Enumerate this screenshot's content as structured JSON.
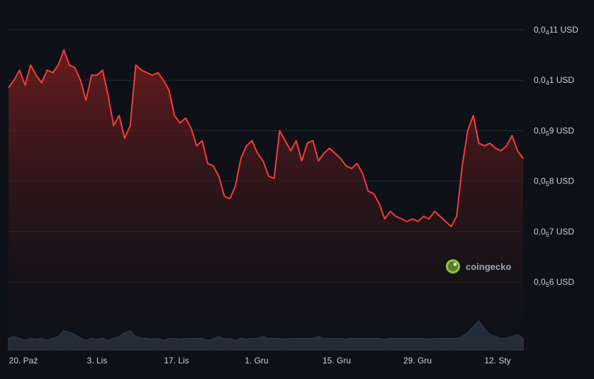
{
  "chart_data": {
    "type": "area",
    "x_ticks": [
      "20. Paź",
      "3. Lis",
      "17. Lis",
      "1. Gru",
      "15. Gru",
      "29. Gru",
      "12. Sty"
    ],
    "y_ticks": [
      {
        "value": 1.1,
        "label_prefix": "0,0",
        "label_sub": "4",
        "label_suffix": "11 USD"
      },
      {
        "value": 1.0,
        "label_prefix": "0,0",
        "label_sub": "4",
        "label_suffix": "1 USD"
      },
      {
        "value": 0.9,
        "label_prefix": "0,0",
        "label_sub": "5",
        "label_suffix": "9 USD"
      },
      {
        "value": 0.8,
        "label_prefix": "0,0",
        "label_sub": "5",
        "label_suffix": "8 USD"
      },
      {
        "value": 0.7,
        "label_prefix": "0,0",
        "label_sub": "5",
        "label_suffix": "7 USD"
      },
      {
        "value": 0.6,
        "label_prefix": "0,0",
        "label_sub": "5",
        "label_suffix": "6 USD"
      }
    ],
    "ylim": [
      0.6,
      1.1
    ],
    "series": [
      {
        "color": "#f23c3c",
        "price_values": [
          0.985,
          1.0,
          1.02,
          0.99,
          1.03,
          1.01,
          0.995,
          1.02,
          1.015,
          1.03,
          1.06,
          1.03,
          1.025,
          1.0,
          0.96,
          1.01,
          1.01,
          1.02,
          0.97,
          0.91,
          0.93,
          0.885,
          0.91,
          1.03,
          1.02,
          1.015,
          1.01,
          1.015,
          1.0,
          0.98,
          0.93,
          0.915,
          0.925,
          0.905,
          0.87,
          0.88,
          0.835,
          0.83,
          0.81,
          0.77,
          0.765,
          0.79,
          0.845,
          0.87,
          0.88,
          0.855,
          0.84,
          0.81,
          0.805,
          0.9,
          0.88,
          0.86,
          0.88,
          0.84,
          0.875,
          0.88,
          0.84,
          0.855,
          0.865,
          0.855,
          0.845,
          0.83,
          0.825,
          0.835,
          0.815,
          0.78,
          0.775,
          0.755,
          0.725,
          0.74,
          0.73,
          0.725,
          0.72,
          0.725,
          0.72,
          0.73,
          0.725,
          0.74,
          0.73,
          0.72,
          0.71,
          0.73,
          0.83,
          0.9,
          0.93,
          0.875,
          0.87,
          0.875,
          0.865,
          0.86,
          0.87,
          0.89,
          0.86,
          0.845
        ]
      }
    ],
    "volume": {
      "color": "#2a3342",
      "values": [
        0.3,
        0.35,
        0.3,
        0.25,
        0.3,
        0.28,
        0.3,
        0.25,
        0.3,
        0.35,
        0.5,
        0.45,
        0.4,
        0.3,
        0.25,
        0.3,
        0.28,
        0.3,
        0.25,
        0.3,
        0.35,
        0.45,
        0.5,
        0.35,
        0.3,
        0.3,
        0.28,
        0.3,
        0.25,
        0.3,
        0.3,
        0.28,
        0.3,
        0.3,
        0.3,
        0.3,
        0.25,
        0.28,
        0.35,
        0.28,
        0.3,
        0.25,
        0.3,
        0.28,
        0.3,
        0.3,
        0.35,
        0.3,
        0.3,
        0.3,
        0.28,
        0.3,
        0.3,
        0.3,
        0.3,
        0.3,
        0.35,
        0.3,
        0.3,
        0.3,
        0.3,
        0.28,
        0.3,
        0.3,
        0.3,
        0.3,
        0.3,
        0.3,
        0.28,
        0.3,
        0.3,
        0.3,
        0.3,
        0.3,
        0.3,
        0.3,
        0.28,
        0.3,
        0.3,
        0.3,
        0.3,
        0.3,
        0.35,
        0.45,
        0.6,
        0.75,
        0.55,
        0.4,
        0.35,
        0.3,
        0.3,
        0.35,
        0.4,
        0.3
      ]
    },
    "grid": true,
    "watermark": "coingecko"
  }
}
